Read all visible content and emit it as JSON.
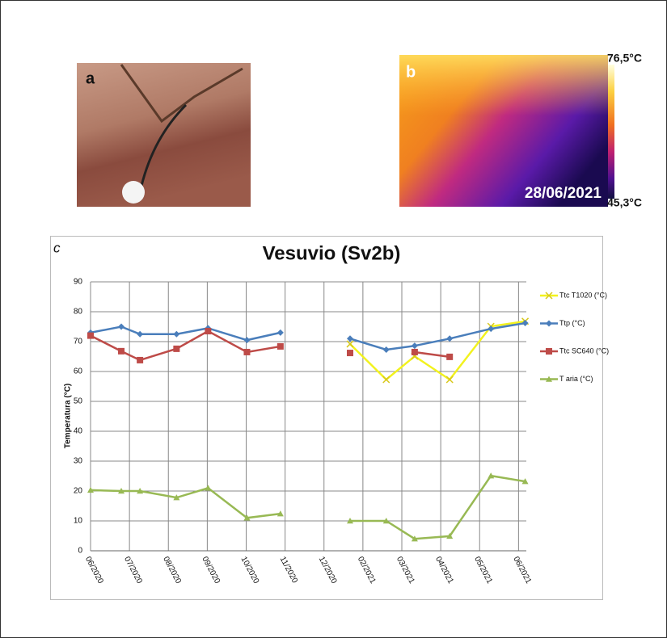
{
  "panels": {
    "a": "a",
    "b": "b",
    "b_date": "28/06/2021",
    "b_max": "76,5°C",
    "b_min": "45,3°C",
    "c": "c"
  },
  "chart_data": {
    "type": "line",
    "title": "Vesuvio (Sv2b)",
    "y_label": "Temperatura (°C)",
    "x": [
      0,
      0.79,
      1.27,
      2.21,
      3.02,
      4.02,
      4.88,
      null,
      6.67,
      7.6,
      8.33,
      9.23,
      10.29,
      11.17
    ],
    "xlim": [
      0,
      11.2
    ],
    "xticks": [
      {
        "value": 0,
        "label": "06/2020"
      },
      {
        "value": 1,
        "label": "07/2020"
      },
      {
        "value": 2,
        "label": "08/2020"
      },
      {
        "value": 3,
        "label": "09/2020"
      },
      {
        "value": 4,
        "label": "10/2020"
      },
      {
        "value": 5,
        "label": "11/2020"
      },
      {
        "value": 6,
        "label": "12/2020"
      },
      {
        "value": 7,
        "label": "02/2021"
      },
      {
        "value": 8,
        "label": "03/2021"
      },
      {
        "value": 9,
        "label": "04/2021"
      },
      {
        "value": 10,
        "label": "05/2021"
      },
      {
        "value": 11,
        "label": "06/2021"
      }
    ],
    "ylim": [
      0,
      90
    ],
    "yticks": [
      0,
      10,
      20,
      30,
      40,
      50,
      60,
      70,
      80,
      90
    ],
    "grid": true,
    "legend": "right",
    "series": [
      {
        "name": "Ttc T1020 (°C)",
        "color": "#f2f21e",
        "marker": "x",
        "values": [
          null,
          null,
          null,
          null,
          null,
          null,
          null,
          null,
          69.2,
          57.3,
          65.1,
          57.3,
          75.1,
          76.8
        ]
      },
      {
        "name": "Ttp (°C)",
        "color": "#4a7ebb",
        "marker": "diamond",
        "values": [
          73,
          75,
          72.5,
          72.5,
          74.5,
          70.5,
          73,
          null,
          71,
          67.3,
          68.6,
          71,
          74.3,
          76.2
        ]
      },
      {
        "name": "Ttc SC640 (°C)",
        "color": "#be4b48",
        "marker": "square",
        "values": [
          72,
          66.8,
          63.8,
          67.6,
          73.5,
          66.5,
          68.4,
          null,
          66.2,
          null,
          66.5,
          64.9,
          null,
          null
        ]
      },
      {
        "name": "T aria (°C)",
        "color": "#98b954",
        "marker": "triangle",
        "values": [
          20.3,
          20,
          20,
          17.8,
          21,
          11,
          12.4,
          null,
          10,
          10,
          4,
          4.9,
          25.1,
          23.2
        ]
      }
    ]
  }
}
